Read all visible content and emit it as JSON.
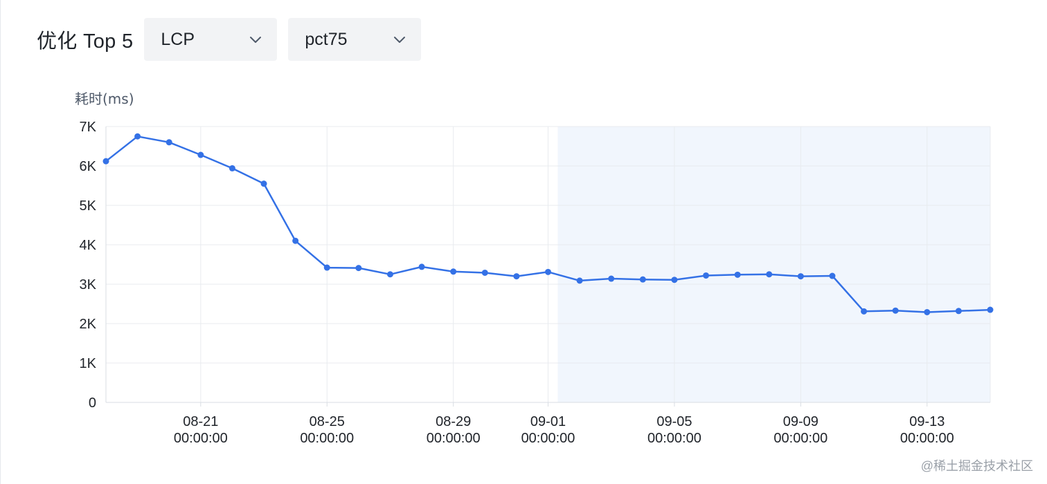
{
  "header": {
    "title": "优化 Top 5",
    "metric_select": {
      "value": "LCP",
      "icon": "chevron-down-icon"
    },
    "percentile_select": {
      "value": "pct75",
      "icon": "chevron-down-icon"
    }
  },
  "chart_data": {
    "type": "line",
    "ylabel": "耗时(ms)",
    "ylim": [
      0,
      7000
    ],
    "y_ticks": [
      {
        "value": 0,
        "label": "0"
      },
      {
        "value": 1000,
        "label": "1K"
      },
      {
        "value": 2000,
        "label": "2K"
      },
      {
        "value": 3000,
        "label": "3K"
      },
      {
        "value": 4000,
        "label": "4K"
      },
      {
        "value": 5000,
        "label": "5K"
      },
      {
        "value": 6000,
        "label": "6K"
      },
      {
        "value": 7000,
        "label": "7K"
      }
    ],
    "x": [
      "08-18",
      "08-19",
      "08-20",
      "08-21",
      "08-22",
      "08-23",
      "08-24",
      "08-25",
      "08-26",
      "08-27",
      "08-28",
      "08-29",
      "08-30",
      "08-31",
      "09-01",
      "09-02",
      "09-03",
      "09-04",
      "09-05",
      "09-06",
      "09-07",
      "09-08",
      "09-09",
      "09-10",
      "09-11",
      "09-12",
      "09-13",
      "09-14",
      "09-15"
    ],
    "x_ticks": [
      {
        "x": "08-21",
        "date": "08-21",
        "time": "00:00:00"
      },
      {
        "x": "08-25",
        "date": "08-25",
        "time": "00:00:00"
      },
      {
        "x": "08-29",
        "date": "08-29",
        "time": "00:00:00"
      },
      {
        "x": "09-01",
        "date": "09-01",
        "time": "00:00:00"
      },
      {
        "x": "09-05",
        "date": "09-05",
        "time": "00:00:00"
      },
      {
        "x": "09-09",
        "date": "09-09",
        "time": "00:00:00"
      },
      {
        "x": "09-13",
        "date": "09-13",
        "time": "00:00:00"
      }
    ],
    "series": [
      {
        "values": [
          6120,
          6750,
          6600,
          6280,
          5940,
          5550,
          4100,
          3420,
          3410,
          3250,
          3440,
          3320,
          3290,
          3200,
          3310,
          3090,
          3140,
          3120,
          3110,
          3220,
          3240,
          3250,
          3200,
          3210,
          2310,
          2330,
          2290,
          2320,
          2350
        ],
        "color": "#3471e6"
      }
    ],
    "highlight_range": {
      "start": "09-01",
      "end": "09-15",
      "color": "#f1f6fd"
    },
    "grid": true
  },
  "watermark": "@稀土掘金技术社区"
}
